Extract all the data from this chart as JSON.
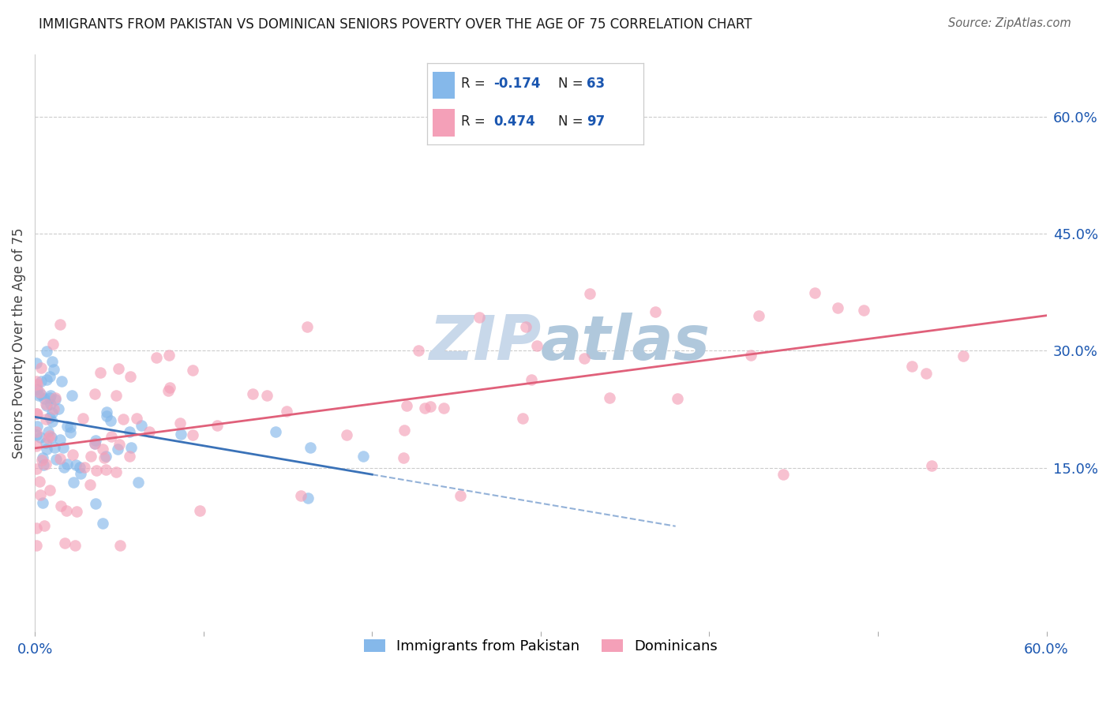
{
  "title": "IMMIGRANTS FROM PAKISTAN VS DOMINICAN SENIORS POVERTY OVER THE AGE OF 75 CORRELATION CHART",
  "source": "Source: ZipAtlas.com",
  "ylabel": "Seniors Poverty Over the Age of 75",
  "right_ytick_labels": [
    "60.0%",
    "45.0%",
    "30.0%",
    "15.0%"
  ],
  "right_ytick_values": [
    0.6,
    0.45,
    0.3,
    0.15
  ],
  "xlim": [
    0.0,
    0.6
  ],
  "ylim": [
    -0.06,
    0.68
  ],
  "pakistan_R": -0.174,
  "pakistan_N": 63,
  "dominican_R": 0.474,
  "dominican_N": 97,
  "pakistan_color": "#85b8ea",
  "dominican_color": "#f4a0b8",
  "pakistan_line_color": "#3a72b8",
  "dominican_line_color": "#e0607a",
  "background_color": "#ffffff",
  "grid_color": "#cccccc",
  "watermark_color": "#c8d8ea",
  "legend_R_color": "#1a56b0",
  "legend_N_color": "#1a56b0",
  "pak_line_x0": 0.0,
  "pak_line_y0": 0.215,
  "pak_line_x1": 0.38,
  "pak_line_y1": 0.075,
  "pak_line_solid_end": 0.2,
  "dom_line_x0": 0.0,
  "dom_line_y0": 0.175,
  "dom_line_x1": 0.6,
  "dom_line_y1": 0.345
}
